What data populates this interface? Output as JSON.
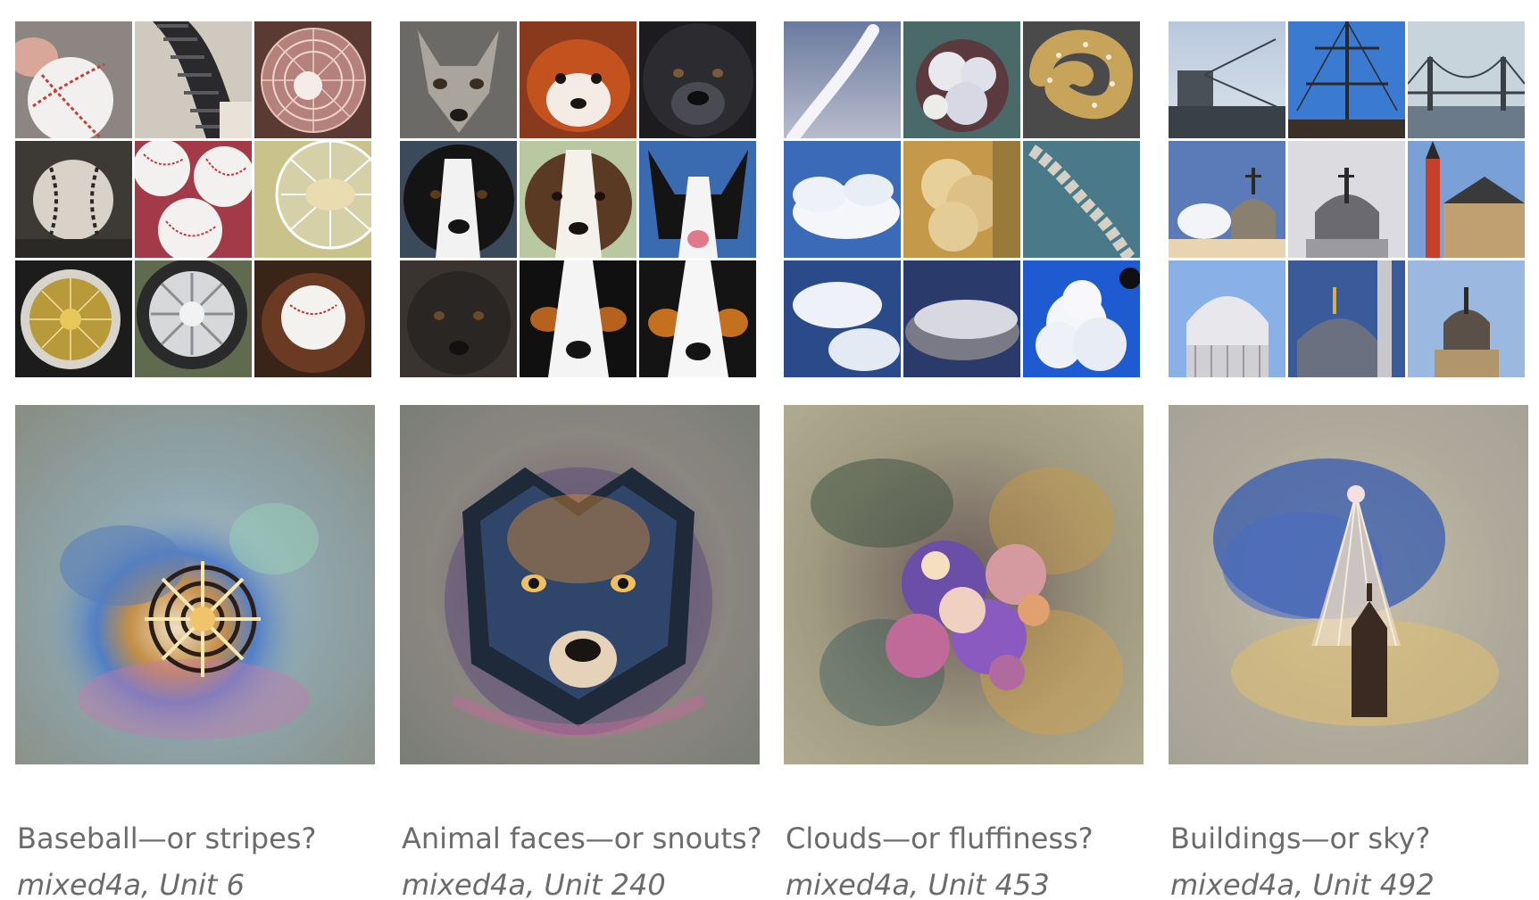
{
  "panels": [
    {
      "title": "Baseball—or stripes?",
      "unit": "mixed4a, Unit 6",
      "thumbnails": [
        "baseball-in-hand",
        "striped-tube",
        "desk-fan",
        "dirty-baseball",
        "baseballs-pile",
        "fan-grille",
        "gold-wire-wheel",
        "chrome-wheel",
        "baseball-in-glove"
      ],
      "palette": {
        "bg": "#8c9690",
        "accent1": "#4d7fc0",
        "accent2": "#e6b54a",
        "accent3": "#c47bb0"
      }
    },
    {
      "title": "Animal faces—or snouts?",
      "unit": "mixed4a, Unit 240",
      "thumbnails": [
        "fox-face",
        "red-panda-face",
        "black-dog-face",
        "border-collie-face",
        "puppy-face",
        "corgi-face",
        "black-dog-face-2",
        "bernese-dog-face",
        "bernese-dog-face-2"
      ],
      "palette": {
        "bg": "#7d8078",
        "accent1": "#3a4f6a",
        "accent2": "#d88a3a",
        "accent3": "#7a5aa0"
      }
    },
    {
      "title": "Clouds—or fluffiness?",
      "unit": "mixed4a, Unit 453",
      "thumbnails": [
        "contrail-sky",
        "frosted-flower",
        "pretzel",
        "cumulus-clouds",
        "fluffy-tan",
        "rope-knot",
        "blue-sky-clouds",
        "grey-cloud",
        "white-cloud-burst"
      ],
      "palette": {
        "bg": "#8e8a7a",
        "accent1": "#6a4ea8",
        "accent2": "#d9a24a",
        "accent3": "#4f7a6a"
      }
    },
    {
      "title": "Buildings—or sky?",
      "unit": "mixed4a, Unit 492",
      "thumbnails": [
        "bridge-tower",
        "ship-mast",
        "suspension-bridge",
        "dome-church",
        "cupola",
        "clock-tower",
        "capitol-dome",
        "mosque-dome",
        "domed-building"
      ],
      "palette": {
        "bg": "#a7a298",
        "accent1": "#2e55b0",
        "accent2": "#e0c070",
        "accent3": "#5a6aa0"
      }
    }
  ]
}
